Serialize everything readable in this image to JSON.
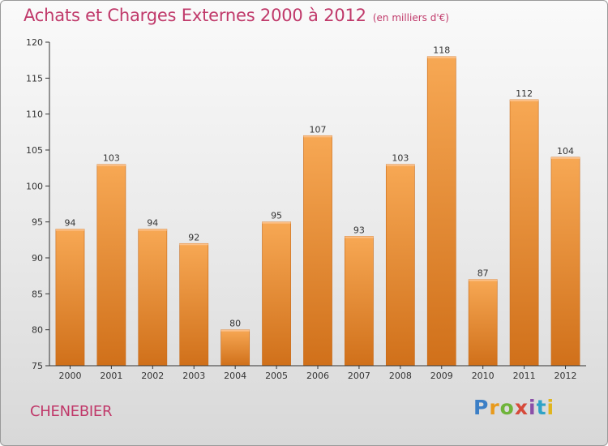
{
  "title": "Achats et Charges Externes 2000 à 2012",
  "title_unit": "(en milliers d'€)",
  "commune": "CHENEBIER",
  "logo_text": "Proxiti",
  "colors": {
    "title": "#c0396a",
    "bar_light": "#f7a854",
    "bar_dark": "#d0701a",
    "axis": "#333333"
  },
  "chart_data": {
    "type": "bar",
    "title": "Achats et Charges Externes 2000 à 2012",
    "subtitle": "(en milliers d'€)",
    "categories": [
      "2000",
      "2001",
      "2002",
      "2003",
      "2004",
      "2005",
      "2006",
      "2007",
      "2008",
      "2009",
      "2010",
      "2011",
      "2012"
    ],
    "values": [
      94,
      103,
      94,
      92,
      80,
      95,
      107,
      93,
      103,
      118,
      87,
      112,
      104
    ],
    "ylim": [
      75,
      120
    ],
    "yticks": [
      75,
      80,
      85,
      90,
      95,
      100,
      105,
      110,
      115,
      120
    ],
    "grid": false,
    "xlabel": "",
    "ylabel": ""
  }
}
